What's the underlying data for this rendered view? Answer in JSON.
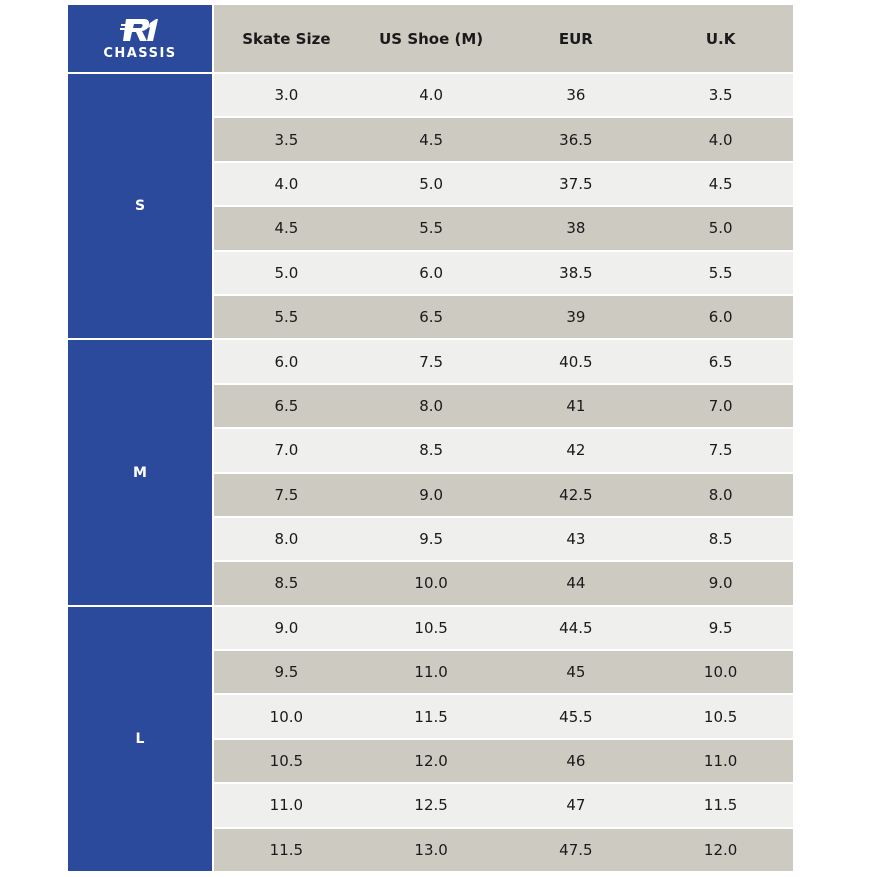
{
  "logo": {
    "text": "CHASSIS",
    "mark": "R1"
  },
  "colors": {
    "brand_blue": "#2b4a9c",
    "row_light": "#efefed",
    "row_dark": "#cdcac2"
  },
  "headers": [
    "Skate Size",
    "US Shoe (M)",
    "EUR",
    "U.K"
  ],
  "groups": [
    {
      "label": "S",
      "rows": [
        [
          "3.0",
          "4.0",
          "36",
          "3.5"
        ],
        [
          "3.5",
          "4.5",
          "36.5",
          "4.0"
        ],
        [
          "4.0",
          "5.0",
          "37.5",
          "4.5"
        ],
        [
          "4.5",
          "5.5",
          "38",
          "5.0"
        ],
        [
          "5.0",
          "6.0",
          "38.5",
          "5.5"
        ],
        [
          "5.5",
          "6.5",
          "39",
          "6.0"
        ]
      ]
    },
    {
      "label": "M",
      "rows": [
        [
          "6.0",
          "7.5",
          "40.5",
          "6.5"
        ],
        [
          "6.5",
          "8.0",
          "41",
          "7.0"
        ],
        [
          "7.0",
          "8.5",
          "42",
          "7.5"
        ],
        [
          "7.5",
          "9.0",
          "42.5",
          "8.0"
        ],
        [
          "8.0",
          "9.5",
          "43",
          "8.5"
        ],
        [
          "8.5",
          "10.0",
          "44",
          "9.0"
        ]
      ]
    },
    {
      "label": "L",
      "rows": [
        [
          "9.0",
          "10.5",
          "44.5",
          "9.5"
        ],
        [
          "9.5",
          "11.0",
          "45",
          "10.0"
        ],
        [
          "10.0",
          "11.5",
          "45.5",
          "10.5"
        ],
        [
          "10.5",
          "12.0",
          "46",
          "11.0"
        ],
        [
          "11.0",
          "12.5",
          "47",
          "11.5"
        ],
        [
          "11.5",
          "13.0",
          "47.5",
          "12.0"
        ]
      ]
    }
  ]
}
